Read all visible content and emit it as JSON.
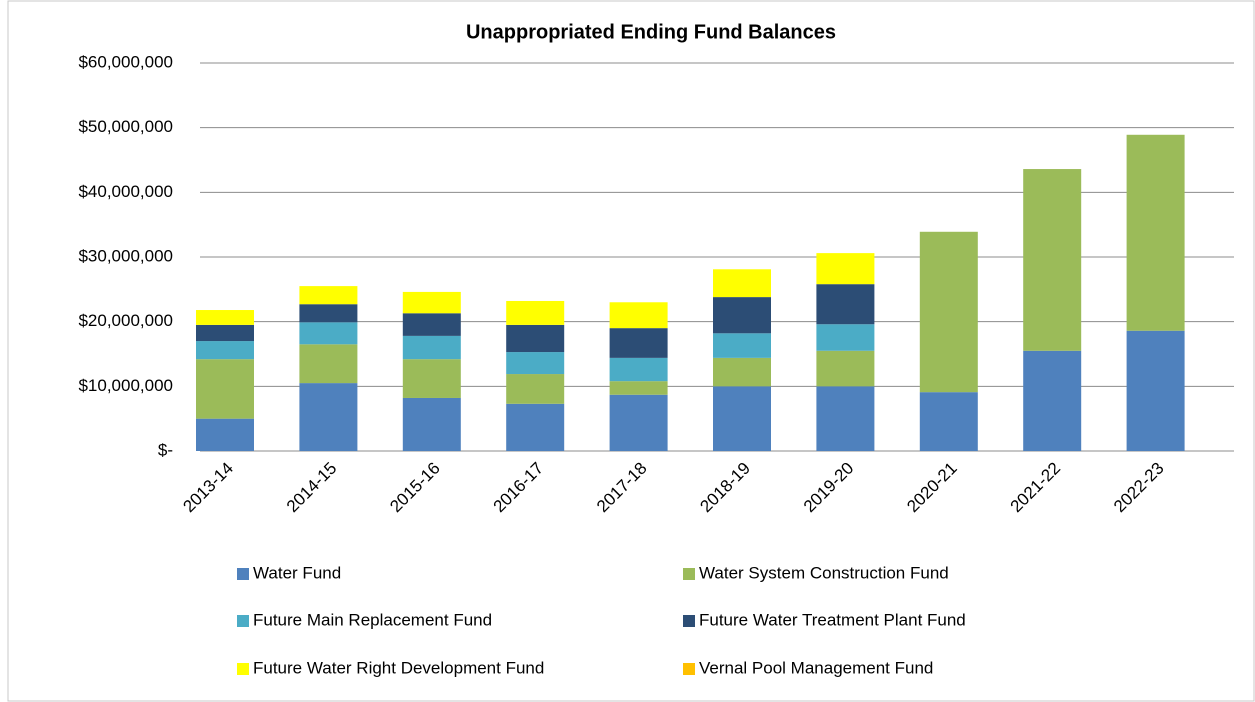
{
  "chart_data": {
    "type": "stacked-bar",
    "title": "Unappropriated Ending Fund Balances",
    "categories": [
      "2013-14",
      "2014-15",
      "2015-16",
      "2016-17",
      "2017-18",
      "2018-19",
      "2019-20",
      "2020-21",
      "2021-22",
      "2022-23"
    ],
    "series": [
      {
        "name": "Water Fund",
        "color": "#4f81bd",
        "values": [
          5000000,
          10500000,
          8200000,
          7300000,
          8700000,
          10000000,
          10000000,
          9100000,
          15500000,
          18600000
        ]
      },
      {
        "name": "Water System Construction Fund",
        "color": "#9bbb59",
        "values": [
          9200000,
          6000000,
          6000000,
          4600000,
          2100000,
          4400000,
          5500000,
          24800000,
          28100000,
          30300000
        ]
      },
      {
        "name": "Future Main Replacement Fund",
        "color": "#4bacc6",
        "values": [
          2800000,
          3400000,
          3600000,
          3400000,
          3600000,
          3800000,
          4100000,
          0,
          0,
          0
        ]
      },
      {
        "name": "Future Water Treatment Plant Fund",
        "color": "#2c4d75",
        "values": [
          2500000,
          2800000,
          3500000,
          4200000,
          4600000,
          5600000,
          6200000,
          0,
          0,
          0
        ]
      },
      {
        "name": "Future Water Right Development Fund",
        "color": "#ffff00",
        "values": [
          2300000,
          2800000,
          3300000,
          3700000,
          4000000,
          4300000,
          4800000,
          0,
          0,
          0
        ]
      },
      {
        "name": "Vernal Pool Management Fund",
        "color": "#ffc000",
        "values": [
          0,
          0,
          0,
          0,
          0,
          0,
          0,
          0,
          0,
          0
        ]
      }
    ],
    "ylim": [
      0,
      60000000
    ],
    "yticks": [
      {
        "value": 0,
        "label": "$-"
      },
      {
        "value": 10000000,
        "label": "$10,000,000"
      },
      {
        "value": 20000000,
        "label": "$20,000,000"
      },
      {
        "value": 30000000,
        "label": "$30,000,000"
      },
      {
        "value": 40000000,
        "label": "$40,000,000"
      },
      {
        "value": 50000000,
        "label": "$50,000,000"
      },
      {
        "value": 60000000,
        "label": "$60,000,000"
      }
    ],
    "grid": true,
    "legend": "bottom"
  }
}
